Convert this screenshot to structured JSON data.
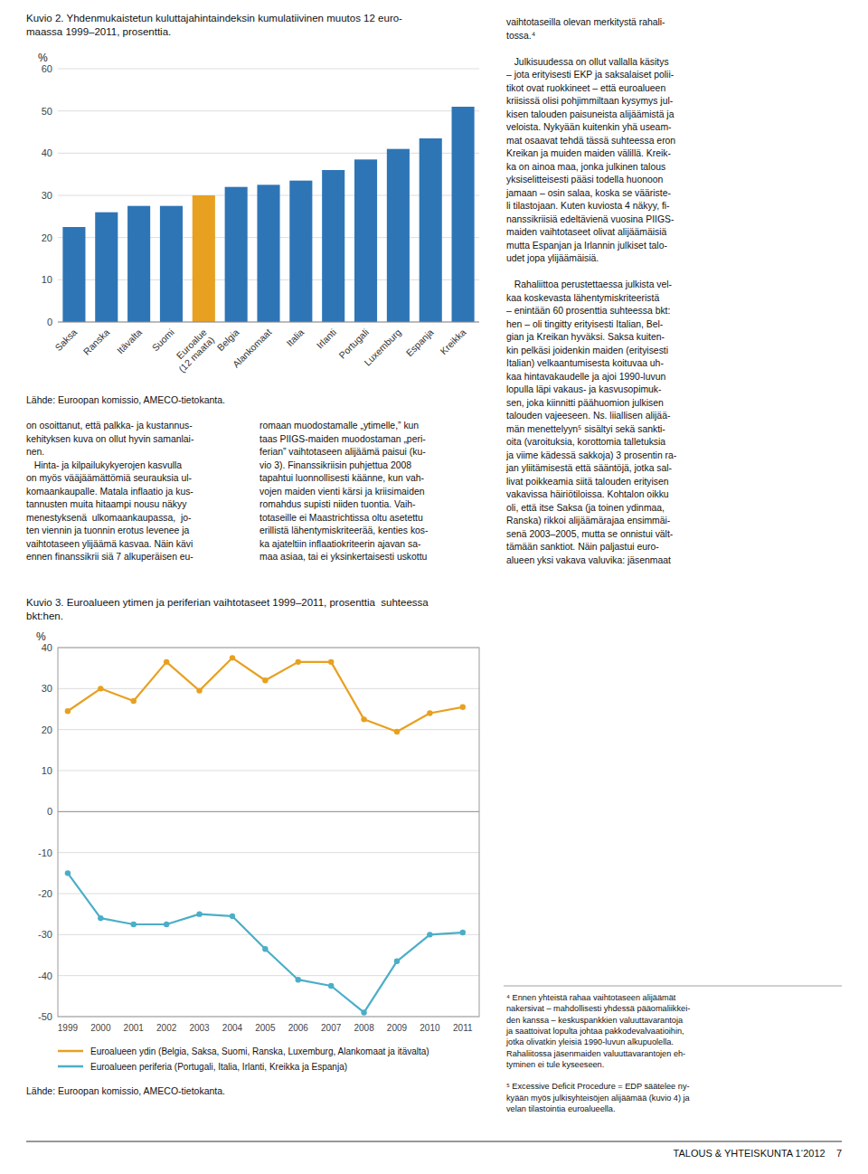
{
  "chart_data": [
    {
      "type": "bar",
      "title": "Kuvio 2. Yhdenmukaistetun kuluttajahintaindeksin kumulatiivinen muutos 12 euro-\nmaassa 1999–2011, prosenttia.",
      "categories": [
        "Saksa",
        "Ranska",
        "Itävalta",
        "Suomi",
        "Euroalue\n(12 maata)",
        "Belgia",
        "Alankomaat",
        "Italia",
        "Irlanti",
        "Portugali",
        "Luxemburg",
        "Espanja",
        "Kreikka"
      ],
      "values": [
        22.5,
        26.0,
        27.5,
        27.5,
        30.0,
        32.0,
        32.5,
        33.5,
        36.0,
        38.5,
        41.0,
        43.5,
        51.0
      ],
      "colors": [
        "#2E75B6",
        "#2E75B6",
        "#2E75B6",
        "#2E75B6",
        "#E8A020",
        "#2E75B6",
        "#2E75B6",
        "#2E75B6",
        "#2E75B6",
        "#2E75B6",
        "#2E75B6",
        "#2E75B6",
        "#2E75B6"
      ],
      "ylabel": "%",
      "ylim": [
        0,
        60
      ],
      "yticks": [
        0,
        10,
        20,
        30,
        40,
        50,
        60
      ],
      "grid": true,
      "source": "Lähde: Euroopan komissio, AMECO-tietokanta."
    },
    {
      "type": "line",
      "title": "Kuvio 3. Euroalueen ytimen ja periferian vaihtotaseet 1999–2011, prosenttia  suhteessa\nbkt:hen.",
      "x": [
        1999,
        2000,
        2001,
        2002,
        2003,
        2004,
        2005,
        2006,
        2007,
        2008,
        2009,
        2010,
        2011
      ],
      "xlim": [
        1998.7,
        2011.5
      ],
      "xticks": [
        1999,
        2000,
        2001,
        2002,
        2003,
        2004,
        2005,
        2006,
        2007,
        2008,
        2009,
        2010,
        2011
      ],
      "series": [
        {
          "name": "Euroalueen ydin (Belgia, Saksa, Suomi, Ranska, Luxemburg, Alankomaat ja itävalta)",
          "color": "#E8A020",
          "marker": "circle",
          "values": [
            24.5,
            30.0,
            27.0,
            36.5,
            29.5,
            37.5,
            32.0,
            36.5,
            36.5,
            22.5,
            19.5,
            24.0,
            25.5
          ]
        },
        {
          "name": "Euroalueen periferia (Portugali, Italia, Irlanti, Kreikka ja Espanja)",
          "color": "#4BAEC8",
          "marker": "circle",
          "values": [
            -15.0,
            -26.0,
            -27.5,
            -27.5,
            -25.0,
            -25.5,
            -33.5,
            -41.0,
            -42.5,
            -49.0,
            -36.5,
            -30.0,
            -29.5
          ]
        }
      ],
      "ylabel": "%",
      "ylim": [
        -50,
        40
      ],
      "yticks": [
        -50,
        -40,
        -30,
        -20,
        -10,
        0,
        10,
        20,
        30,
        40
      ],
      "grid": true,
      "legend": "bottom",
      "source": "Lähde: Euroopan komissio, AMECO-tietokanta."
    }
  ],
  "body_text": [
    {
      "paragraphs": [
        [
          "on osoittanut, että palkka- ja kustannus-",
          "kehityksen kuva on ollut hyvin samanlai-",
          "nen.",
          "   Hinta- ja kilpailukykyerojen kasvulla",
          "on myös vääjäämättömiä seurauksia ul-",
          "komaankaupalle. Matala inflaatio ja kus-",
          "tannusten muita hitaampi nousu näkyy",
          "menestyksenä  ulkomaankaupassa,  jo-",
          "ten viennin ja tuonnin erotus levenee ja",
          "vaihtotaseen ylijäämä kasvaa. Näin kävi",
          "ennen finanssikrii siä 7 alkuperäisen eu-"
        ]
      ]
    },
    {
      "paragraphs": [
        [
          "romaan muodostamalle „ytimelle,” kun",
          "taas PIIGS-maiden muodostaman „peri-",
          "ferian” vaihtotaseen alijäämä paisui (ku-",
          "vio 3). Finanssikriisin puhjettua 2008",
          "tapahtui luonnollisesti käänne, kun vah-",
          "vojen maiden vienti kärsi ja kriisimaiden",
          "romahdus supisti niiden tuontia. Vaih-",
          "totaseille ei Maastrichtissa oltu asetettu",
          "erillistä lähentymiskriteerää, kenties kos-",
          "ka ajateltiin inflaatiokriteerin ajavan sa-",
          "maa asiaa, tai ei yksinkertaisesti uskottu"
        ]
      ]
    },
    {
      "paragraphs": [
        [
          "vaihtotaseilla olevan merkitystä rahali-",
          "tossa.⁴"
        ],
        [
          "   Julkisuudessa on ollut vallalla käsitys",
          "– jota erityisesti EKP ja saksalaiset polii-",
          "tikot ovat ruokkineet – että euroalueen",
          "kriisissä olisi pohjimmiltaan kysymys jul-",
          "kisen talouden paisuneista alijäämistä ja",
          "veloista. Nykyään kuitenkin yhä useam-",
          "mat osaavat tehdä tässä suhteessa eron",
          "Kreikan ja muiden maiden välillä. Kreik-",
          "ka on ainoa maa, jonka julkinen talous",
          "yksiselitteisesti pääsi todella huonoon",
          "jamaan – osin salaa, koska se vääriste-",
          "li tilastojaan. Kuten kuviosta 4 näkyy, fi-",
          "nanssikriisiä edeltävienä vuosina PIIGS-",
          "maiden vaihtotaseet olivat alijäämäisiä",
          "mutta Espanjan ja Irlannin julkiset talo-",
          "udet jopa ylijäämäisiä."
        ],
        [
          "   Rahaliittoa perustettaessa julkista vel-",
          "kaa koskevasta lähentymiskriteeristä",
          "– enintään 60 prosenttia suhteessa bkt:",
          "hen – oli tingitty erityisesti Italian, Bel-",
          "gian ja Kreikan hyväksi. Saksa kuiten-",
          "kin pelkäsi joidenkin maiden (erityisesti",
          "Italian) velkaantumisesta koituvaa uh-",
          "kaa hintavakaudelle ja ajoi 1990-luvun",
          "lopulla läpi vakaus- ja kasvusopimuk-",
          "sen, joka kiinnitti päähuomion julkisen",
          "talouden vajeeseen. Ns. liiallisen alijää-",
          "män menettelyyn⁵ sisältyi sekä sankti-",
          "oita (varoituksia, korottomia talletuksia",
          "ja viime kädessä sakkoja) 3 prosentin ra-",
          "jan yliitämisestä että sääntöjä, jotka sal-",
          "livat poikkeamia siitä talouden erityisen",
          "vakavissa häiriötiloissa. Kohtalon oikku",
          "oli, että itse Saksa (ja toinen ydinmaa,",
          "Ranska) rikkoi alijäämärajaa ensimmäi-",
          "senä 2003–2005, mutta se onnistui vält-",
          "tämään sanktiot. Näin paljastui euro-",
          "alueen yksi vakava valuvika: jäsenmaat"
        ]
      ]
    }
  ],
  "footnotes": {
    "paragraphs": [
      [
        "⁴ Ennen yhteistä rahaa vaihtotaseen alijäämät",
        "nakersivat – mahdollisesti yhdessä pääomaliikkei-",
        "den kanssa – keskuspankkien valuuttavarantoja",
        "ja saattoivat lopulta johtaa pakkodevalvaatioihin,",
        "jotka olivatkin yleisiä 1990-luvun alkupuolella.",
        "Rahaliitossa jäsenmaiden valuuttavarantojen eh-",
        "tyminen ei tule kyseeseen."
      ],
      [
        "⁵ Excessive Deficit Procedure = EDP säätelee ny-",
        "kyään myös julkisyhteisöjen alijäämää (kuvio 4) ja",
        "velan tilastointia euroalueella."
      ]
    ]
  },
  "footer": "TALOUS & YHTEISKUNTA 1‘2012    7"
}
